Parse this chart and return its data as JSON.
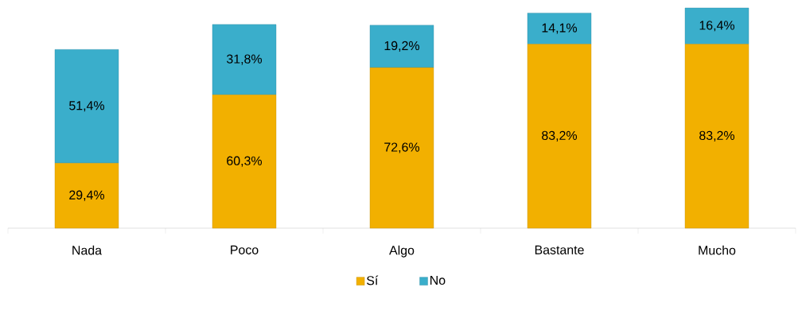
{
  "chart_data": {
    "type": "bar",
    "stacked": true,
    "categories": [
      "Nada",
      "Poco",
      "Algo",
      "Bastante",
      "Mucho"
    ],
    "series": [
      {
        "name": "Sí",
        "color": "#f2b000",
        "values": [
          29.4,
          60.3,
          72.6,
          83.2,
          83.2
        ],
        "value_labels": [
          "29,4%",
          "60,3%",
          "72,6%",
          "83,2%",
          "83,2%"
        ]
      },
      {
        "name": "No",
        "color": "#3aaecb",
        "values": [
          51.4,
          31.8,
          19.2,
          14.1,
          16.4
        ],
        "value_labels": [
          "51,4%",
          "31,8%",
          "19,2%",
          "14,1%",
          "16,4%"
        ]
      }
    ],
    "legend": "bottom"
  }
}
